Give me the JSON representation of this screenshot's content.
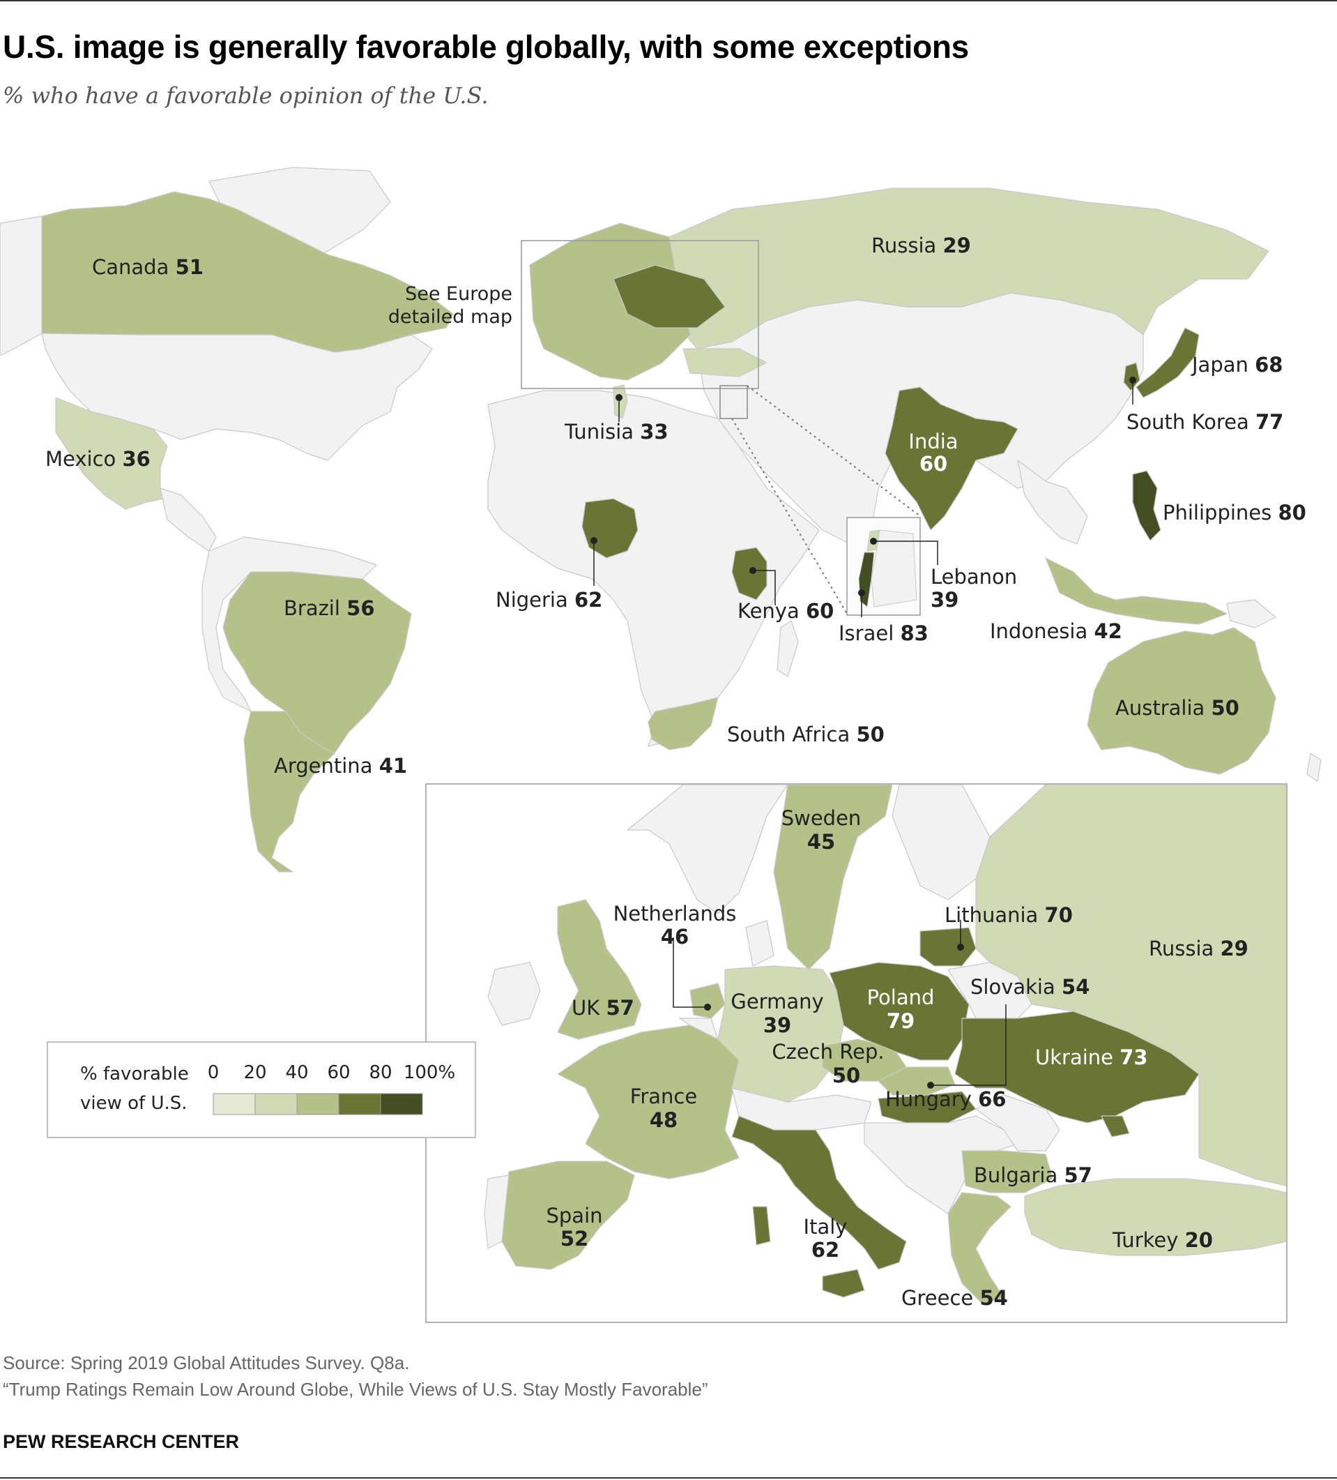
{
  "title": "U.S. image is generally favorable globally, with some exceptions",
  "subtitle": "% who have a favorable opinion of the U.S.",
  "colors": {
    "no_data": "#f2f2f2",
    "border": "#c9c9c9",
    "scale": [
      "#e6ead5",
      "#d2dab5",
      "#b5c188",
      "#6a7434",
      "#454d22"
    ]
  },
  "europe_note": [
    "See Europe",
    "detailed map"
  ],
  "legend": {
    "title_line1": "% favorable",
    "title_line2": "view of U.S.",
    "ticks": [
      "0",
      "20",
      "40",
      "60",
      "80",
      "100%"
    ]
  },
  "countries": {
    "canada": {
      "name": "Canada",
      "value": 51
    },
    "russia": {
      "name": "Russia",
      "value": 29
    },
    "japan": {
      "name": "Japan",
      "value": 68
    },
    "south_korea": {
      "name": "South Korea",
      "value": 77
    },
    "india": {
      "name": "India",
      "value": 60
    },
    "tunisia": {
      "name": "Tunisia",
      "value": 33
    },
    "mexico": {
      "name": "Mexico",
      "value": 36
    },
    "philippines": {
      "name": "Philippines",
      "value": 80
    },
    "nigeria": {
      "name": "Nigeria",
      "value": 62
    },
    "kenya": {
      "name": "Kenya",
      "value": 60
    },
    "lebanon": {
      "name": "Lebanon",
      "value": 39
    },
    "israel": {
      "name": "Israel",
      "value": 83
    },
    "indonesia": {
      "name": "Indonesia",
      "value": 42
    },
    "brazil": {
      "name": "Brazil",
      "value": 56
    },
    "australia": {
      "name": "Australia",
      "value": 50
    },
    "south_africa": {
      "name": "South Africa",
      "value": 50
    },
    "argentina": {
      "name": "Argentina",
      "value": 41
    },
    "sweden": {
      "name": "Sweden",
      "value": 45
    },
    "netherlands": {
      "name": "Netherlands",
      "value": 46
    },
    "lithuania": {
      "name": "Lithuania",
      "value": 70
    },
    "uk": {
      "name": "UK",
      "value": 57
    },
    "germany": {
      "name": "Germany",
      "value": 39
    },
    "poland": {
      "name": "Poland",
      "value": 79
    },
    "slovakia": {
      "name": "Slovakia",
      "value": 54
    },
    "czech_rep": {
      "name": "Czech Rep.",
      "value": 50
    },
    "ukraine": {
      "name": "Ukraine",
      "value": 73
    },
    "france": {
      "name": "France",
      "value": 48
    },
    "hungary": {
      "name": "Hungary",
      "value": 66
    },
    "bulgaria": {
      "name": "Bulgaria",
      "value": 57
    },
    "spain": {
      "name": "Spain",
      "value": 52
    },
    "italy": {
      "name": "Italy",
      "value": 62
    },
    "turkey": {
      "name": "Turkey",
      "value": 20
    },
    "greece": {
      "name": "Greece",
      "value": 54
    }
  },
  "source": "Source: Spring 2019 Global Attitudes Survey. Q8a.",
  "report": "“Trump Ratings Remain Low Around Globe, While Views of U.S. Stay Mostly Favorable”",
  "brand": "PEW RESEARCH CENTER"
}
